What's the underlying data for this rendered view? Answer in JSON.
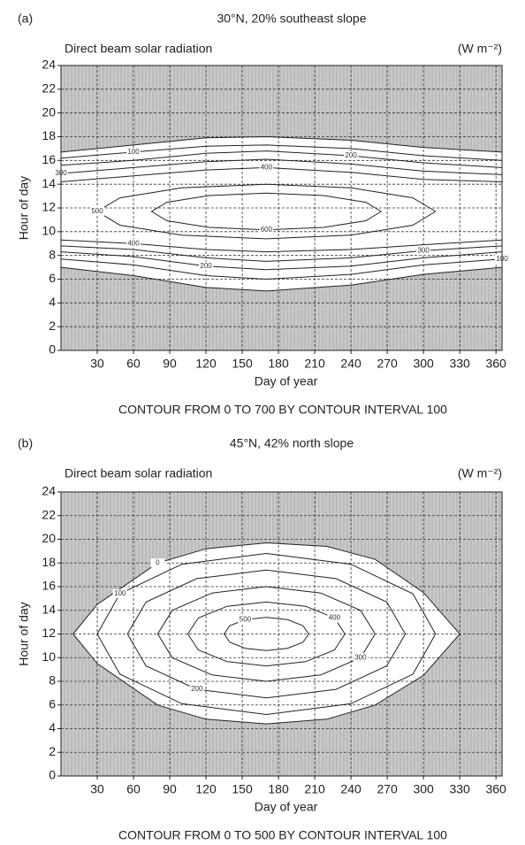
{
  "chart_data": [
    {
      "type": "contour",
      "panel": "(a)",
      "title": "30°N, 20% southeast slope",
      "subtitle": "Direct beam solar radiation",
      "units": "(W m⁻²)",
      "xlabel": "Day of year",
      "ylabel": "Hour of day",
      "note": "CONTOUR FROM 0 TO 700 BY CONTOUR INTERVAL 100",
      "xlim": [
        0,
        365
      ],
      "xticks": [
        30,
        60,
        90,
        120,
        150,
        180,
        210,
        240,
        270,
        300,
        330,
        360
      ],
      "ylim": [
        0,
        24
      ],
      "yticks": [
        0,
        2,
        4,
        6,
        8,
        10,
        12,
        14,
        16,
        18,
        20,
        22,
        24
      ],
      "grid": true,
      "shade_color": "#c9c9c9",
      "contours": [
        {
          "level": 0,
          "x": [
            0,
            60,
            120,
            170,
            240,
            300,
            365
          ],
          "y": [
            16.7,
            17.3,
            17.9,
            18.0,
            17.7,
            17.1,
            16.7
          ]
        },
        {
          "level": 0,
          "x": [
            0,
            60,
            120,
            170,
            240,
            300,
            365
          ],
          "y": [
            7.0,
            6.3,
            5.3,
            5.0,
            5.5,
            6.4,
            7.0
          ]
        },
        {
          "level": 100,
          "x": [
            0,
            60,
            120,
            170,
            240,
            300,
            365
          ],
          "y": [
            16.2,
            16.7,
            17.2,
            17.3,
            17.0,
            16.4,
            16.0
          ]
        },
        {
          "level": 200,
          "x": [
            0,
            60,
            120,
            170,
            240,
            300,
            365
          ],
          "y": [
            15.6,
            16.0,
            16.6,
            16.8,
            16.4,
            15.8,
            15.4
          ]
        },
        {
          "level": 300,
          "x": [
            0,
            60,
            120,
            170,
            240,
            300,
            365
          ],
          "y": [
            14.9,
            15.4,
            15.9,
            16.1,
            15.7,
            15.1,
            14.8
          ]
        },
        {
          "level": 400,
          "x": [
            0,
            60,
            120,
            170,
            240,
            300,
            365
          ],
          "y": [
            14.2,
            14.7,
            15.2,
            15.4,
            15.0,
            14.4,
            14.2
          ]
        },
        {
          "level": 100,
          "x": [
            0,
            60,
            120,
            170,
            240,
            300,
            365
          ],
          "y": [
            7.7,
            7.2,
            6.3,
            6.0,
            6.4,
            7.2,
            7.7
          ]
        },
        {
          "level": 200,
          "x": [
            0,
            60,
            120,
            170,
            240,
            300,
            365
          ],
          "y": [
            8.3,
            7.9,
            7.1,
            6.8,
            7.1,
            7.8,
            8.3
          ]
        },
        {
          "level": 300,
          "x": [
            0,
            60,
            120,
            170,
            240,
            300,
            365
          ],
          "y": [
            8.8,
            8.5,
            7.8,
            7.5,
            7.8,
            8.4,
            8.8
          ]
        },
        {
          "level": 400,
          "x": [
            0,
            60,
            120,
            170,
            240,
            300,
            365
          ],
          "y": [
            9.3,
            9.0,
            8.5,
            8.3,
            8.5,
            8.9,
            9.3
          ]
        },
        {
          "level": 500,
          "x": [
            310,
            291.2,
            240,
            170,
            100,
            48.8,
            30,
            48.8,
            100,
            170,
            240,
            291.2,
            310
          ],
          "y": [
            11.7,
            12.85,
            13.69,
            14.0,
            13.69,
            12.85,
            11.7,
            10.55,
            9.71,
            9.4,
            9.71,
            10.55,
            11.7
          ]
        },
        {
          "level": 600,
          "x": [
            265,
            252.3,
            217.5,
            170,
            122.5,
            87.7,
            75,
            87.7,
            122.5,
            170,
            217.5,
            252.3,
            265
          ],
          "y": [
            11.7,
            12.48,
            13.04,
            13.25,
            13.04,
            12.48,
            11.7,
            10.92,
            10.36,
            10.15,
            10.36,
            10.92,
            11.7
          ]
        }
      ]
    },
    {
      "type": "contour",
      "panel": "(b)",
      "title": "45°N, 42% north slope",
      "subtitle": "Direct beam solar radiation",
      "units": "(W m⁻²)",
      "xlabel": "Day of year",
      "ylabel": "Hour of day",
      "note": "CONTOUR FROM 0 TO 500 BY CONTOUR INTERVAL 100",
      "xlim": [
        0,
        365
      ],
      "xticks": [
        30,
        60,
        90,
        120,
        150,
        180,
        210,
        240,
        270,
        300,
        330,
        360
      ],
      "ylim": [
        0,
        24
      ],
      "yticks": [
        0,
        2,
        4,
        6,
        8,
        10,
        12,
        14,
        16,
        18,
        20,
        22,
        24
      ],
      "grid": true,
      "shade_color": "#c9c9c9",
      "contours": [
        {
          "level": 0,
          "x": [
            10,
            30,
            80,
            120,
            170,
            220,
            260,
            300,
            330,
            300,
            260,
            220,
            170,
            120,
            80,
            30,
            10
          ],
          "y": [
            12,
            14.5,
            18,
            19.2,
            19.7,
            19.4,
            18.3,
            15.5,
            12,
            8.5,
            6.0,
            4.8,
            4.4,
            4.8,
            6.0,
            9.5,
            12
          ]
        },
        {
          "level": 100,
          "x": [
            310,
            291.2,
            240,
            170,
            100,
            48.8,
            30,
            48.8,
            100,
            170,
            240,
            291.2,
            310
          ],
          "y": [
            12,
            15.4,
            17.89,
            18.8,
            17.89,
            15.4,
            12,
            8.6,
            6.11,
            5.2,
            6.11,
            8.6,
            12
          ]
        },
        {
          "level": 200,
          "x": [
            285,
            269.6,
            227.5,
            170,
            112.5,
            70.4,
            55,
            70.4,
            112.5,
            170,
            227.5,
            269.6,
            285
          ],
          "y": [
            12,
            14.7,
            16.68,
            17.4,
            16.68,
            14.7,
            12,
            9.3,
            7.32,
            6.6,
            7.32,
            9.3,
            12
          ]
        },
        {
          "level": 300,
          "x": [
            260,
            247.9,
            215,
            170,
            125,
            92.1,
            80,
            92.1,
            125,
            170,
            215,
            247.9,
            260
          ],
          "y": [
            12,
            14,
            15.46,
            16,
            15.46,
            14,
            12,
            10,
            8.54,
            8,
            8.54,
            10,
            12
          ]
        },
        {
          "level": 400,
          "x": [
            235,
            226.3,
            202.5,
            170,
            137.5,
            113.7,
            105,
            113.7,
            137.5,
            170,
            202.5,
            226.3,
            235
          ],
          "y": [
            12,
            13.35,
            14.34,
            14.7,
            14.34,
            13.35,
            12,
            10.65,
            9.66,
            9.3,
            9.66,
            10.65,
            12
          ]
        },
        {
          "level": 500,
          "x": [
            205,
            200.3,
            187.5,
            170,
            152.5,
            139.7,
            135,
            139.7,
            152.5,
            170,
            187.5,
            200.3,
            205
          ],
          "y": [
            12,
            12.7,
            13.21,
            13.4,
            13.21,
            12.7,
            12,
            11.3,
            10.79,
            10.6,
            10.79,
            11.3,
            12
          ]
        }
      ]
    }
  ]
}
